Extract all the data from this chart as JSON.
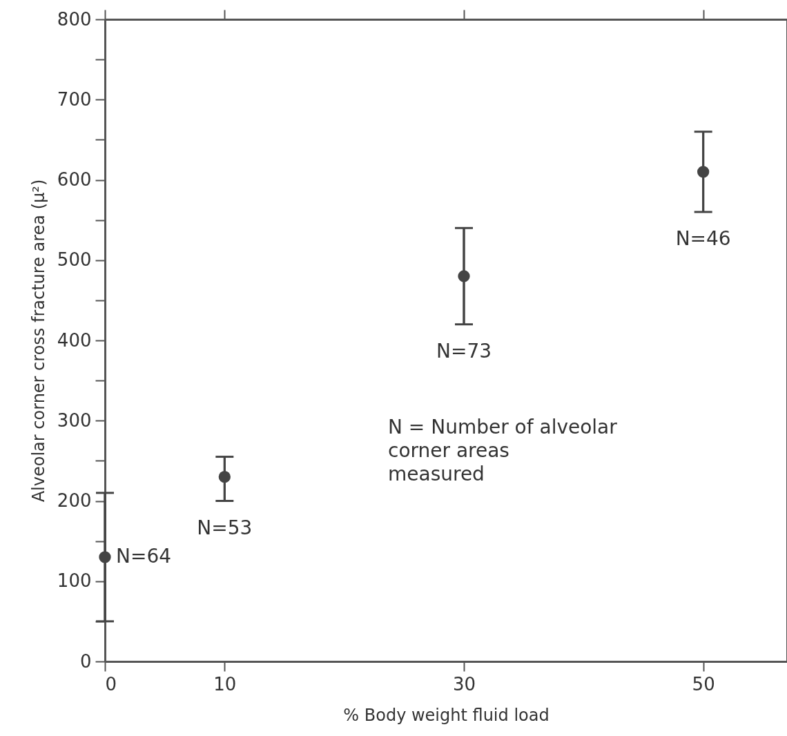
{
  "chart_data": {
    "type": "scatter",
    "xlabel": "% Body weight fluid load",
    "ylabel": "Alveolar corner cross fracture area (μ²)",
    "x": [
      0,
      10,
      30,
      50
    ],
    "series": [
      {
        "color": "#444444",
        "values": [
          130,
          230,
          480,
          610
        ],
        "errors": [
          [
            50,
            210
          ],
          [
            200,
            255
          ],
          [
            420,
            540
          ],
          [
            560,
            660
          ]
        ]
      }
    ],
    "xlim": [
      0,
      57
    ],
    "xticks": [
      0,
      10,
      30,
      50
    ],
    "ylim": [
      0,
      800
    ],
    "yticks": [
      0,
      {
        "value": 50,
        "label": null
      },
      100,
      {
        "value": 150,
        "label": null
      },
      200,
      {
        "value": 250,
        "label": null
      },
      300,
      {
        "value": 350,
        "label": null
      },
      400,
      {
        "value": 450,
        "label": null
      },
      500,
      {
        "value": 550,
        "label": null
      },
      600,
      {
        "value": 650,
        "label": null
      },
      700,
      {
        "value": 750,
        "label": null
      },
      800
    ],
    "marker": "circle",
    "grid": false,
    "annotations": [
      {
        "text": "N=64",
        "x": 0,
        "y": 130
      },
      {
        "text": "N=53",
        "x": 10,
        "y": 200
      },
      {
        "text": "N=73",
        "x": 30,
        "y": 420
      },
      {
        "text": "N=46",
        "x": 50,
        "y": 560
      },
      "N = Number of alveolar\n   corner areas\n   measured"
    ]
  }
}
